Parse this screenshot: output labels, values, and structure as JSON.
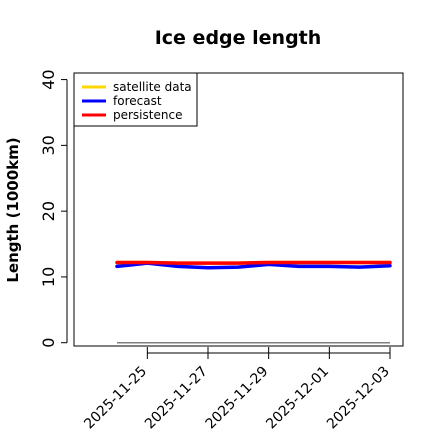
{
  "chart_data": {
    "type": "line",
    "title": "Ice edge length",
    "xlabel": "",
    "ylabel": "Length (1000km)",
    "x": [
      "2025-11-24",
      "2025-11-25",
      "2025-11-26",
      "2025-11-27",
      "2025-11-28",
      "2025-11-29",
      "2025-11-30",
      "2025-12-01",
      "2025-12-02",
      "2025-12-03"
    ],
    "xticks": [
      "2025-11-25",
      "2025-11-27",
      "2025-11-29",
      "2025-12-01",
      "2025-12-03"
    ],
    "xtick_colors": [
      "#228b22",
      "#000000",
      "#000000",
      "#000000",
      "#000000"
    ],
    "yticks": [
      0,
      10,
      20,
      30,
      40
    ],
    "ylim": [
      -0.5,
      41
    ],
    "legend": "top-left",
    "grid": false,
    "series": [
      {
        "name": "satellite data",
        "color": "#ffd700",
        "values": [
          12.2,
          12.2,
          12.1,
          12.1,
          12.1,
          12.2,
          12.2,
          12.2,
          12.2,
          12.2
        ]
      },
      {
        "name": "forecast",
        "color": "#0000ff",
        "values": [
          11.6,
          12.1,
          11.6,
          11.4,
          11.5,
          11.9,
          11.6,
          11.6,
          11.5,
          11.7
        ]
      },
      {
        "name": "persistence",
        "color": "#ff0000",
        "values": [
          12.2,
          12.2,
          12.1,
          12.1,
          12.1,
          12.2,
          12.2,
          12.2,
          12.2,
          12.2
        ]
      }
    ],
    "reference_line": {
      "value": 0,
      "color": "#808080"
    }
  }
}
